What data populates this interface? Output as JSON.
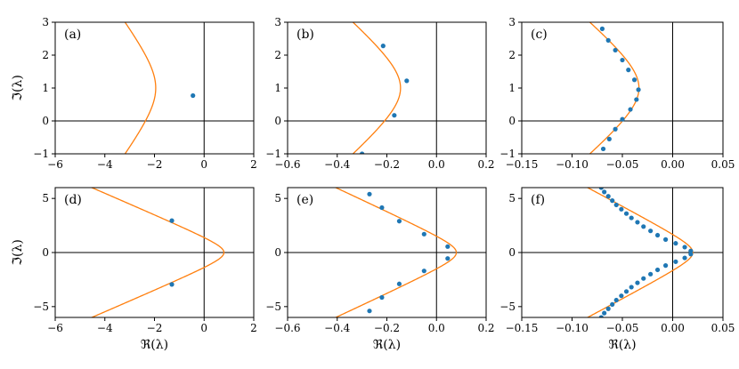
{
  "colors": {
    "curve": "#ff7f0e",
    "points": "#1f77b4",
    "axes": "#000000"
  },
  "chart_data": [
    {
      "type": "scatter",
      "panel_label": "(a)",
      "xlim": [
        -6,
        2
      ],
      "ylim": [
        -1,
        3
      ],
      "xticks": [
        "−6",
        "−4",
        "−2",
        "0",
        "2"
      ],
      "xtick_values": [
        -6,
        -4,
        -2,
        0,
        2
      ],
      "yticks": [
        "−1",
        "0",
        "1",
        "2",
        "3"
      ],
      "ytick_values": [
        -1,
        0,
        1,
        2,
        3
      ],
      "xlabel": "",
      "ylabel": "ℑ(λ)",
      "curve": {
        "a": 1,
        "b": 1,
        "c": -1.95,
        "d": -1.0,
        "center": 1.0
      },
      "points": [
        [
          -0.45,
          0.77
        ]
      ]
    },
    {
      "type": "scatter",
      "panel_label": "(b)",
      "xlim": [
        -0.6,
        0.2
      ],
      "ylim": [
        -1,
        3
      ],
      "xticks": [
        "−0.6",
        "−0.4",
        "−0.2",
        "0.0",
        "0.2"
      ],
      "xtick_values": [
        -0.6,
        -0.4,
        -0.2,
        0.0,
        0.2
      ],
      "yticks": [
        "−1",
        "0",
        "1",
        "2",
        "3"
      ],
      "ytick_values": [
        -1,
        0,
        1,
        2,
        3
      ],
      "xlabel": "",
      "ylabel": "",
      "curve": {
        "a": 1,
        "b": 1,
        "c": -0.145,
        "d": -0.155,
        "center": 1.0
      },
      "points": [
        [
          -0.215,
          2.28
        ],
        [
          -0.12,
          1.22
        ],
        [
          -0.17,
          0.17
        ],
        [
          -0.3,
          -1.0
        ]
      ]
    },
    {
      "type": "scatter",
      "panel_label": "(c)",
      "xlim": [
        -0.15,
        0.05
      ],
      "ylim": [
        -1,
        3
      ],
      "xticks": [
        "−0.15",
        "−0.10",
        "−0.05",
        "0.00",
        "0.05"
      ],
      "xtick_values": [
        -0.15,
        -0.1,
        -0.05,
        0.0,
        0.05
      ],
      "yticks": [
        "−1",
        "0",
        "1",
        "2",
        "3"
      ],
      "ytick_values": [
        -1,
        0,
        1,
        2,
        3
      ],
      "xlabel": "",
      "ylabel": "",
      "curve": {
        "a": 1,
        "b": 1,
        "c": -0.0335,
        "d": -0.0395,
        "center": 1.0
      },
      "points": [
        [
          -0.07,
          2.8
        ],
        [
          -0.064,
          2.45
        ],
        [
          -0.057,
          2.15
        ],
        [
          -0.05,
          1.85
        ],
        [
          -0.044,
          1.55
        ],
        [
          -0.038,
          1.25
        ],
        [
          -0.034,
          0.95
        ],
        [
          -0.036,
          0.65
        ],
        [
          -0.042,
          0.35
        ],
        [
          -0.05,
          0.05
        ],
        [
          -0.057,
          -0.25
        ],
        [
          -0.063,
          -0.55
        ],
        [
          -0.069,
          -0.85
        ]
      ]
    },
    {
      "type": "scatter",
      "panel_label": "(d)",
      "xlim": [
        -6,
        2
      ],
      "ylim": [
        -6,
        6
      ],
      "xticks": [
        "−6",
        "−4",
        "−2",
        "0",
        "2"
      ],
      "xtick_values": [
        -6,
        -4,
        -2,
        0,
        2
      ],
      "yticks": [
        "−5",
        "0",
        "5"
      ],
      "ytick_values": [
        -5,
        0,
        5
      ],
      "xlabel": "ℜ(λ)",
      "ylabel": "ℑ(λ)",
      "curve": {
        "a": 1,
        "b": 1.5,
        "c": 0.8,
        "d": -0.83,
        "center": 0
      },
      "points": [
        [
          -1.3,
          2.95
        ],
        [
          -1.3,
          -2.95
        ]
      ]
    },
    {
      "type": "scatter",
      "panel_label": "(e)",
      "xlim": [
        -0.6,
        0.2
      ],
      "ylim": [
        -6,
        6
      ],
      "xticks": [
        "−0.6",
        "−0.4",
        "−0.2",
        "0.0",
        "0.2"
      ],
      "xtick_values": [
        -0.6,
        -0.4,
        -0.2,
        0.0,
        0.2
      ],
      "yticks": [
        "−5",
        "0",
        "5"
      ],
      "ytick_values": [
        -5,
        0,
        5
      ],
      "xlabel": "ℜ(λ)",
      "ylabel": "",
      "curve": {
        "a": 1,
        "b": 1.2,
        "c": 0.08,
        "d": -0.086,
        "center": 0
      },
      "points": [
        [
          -0.27,
          5.4
        ],
        [
          -0.22,
          4.15
        ],
        [
          -0.15,
          2.9
        ],
        [
          -0.05,
          1.7
        ],
        [
          0.045,
          0.55
        ],
        [
          0.045,
          -0.55
        ],
        [
          -0.05,
          -1.7
        ],
        [
          -0.15,
          -2.9
        ],
        [
          -0.22,
          -4.15
        ],
        [
          -0.27,
          -5.4
        ]
      ]
    },
    {
      "type": "scatter",
      "panel_label": "(f)",
      "xlim": [
        -0.15,
        0.05
      ],
      "ylim": [
        -6,
        6
      ],
      "xticks": [
        "−0.15",
        "−0.10",
        "−0.05",
        "0.00",
        "0.05"
      ],
      "xtick_values": [
        -0.15,
        -0.1,
        -0.05,
        0.0,
        0.05
      ],
      "yticks": [
        "−5",
        "0",
        "5"
      ],
      "ytick_values": [
        -5,
        0,
        5
      ],
      "xlabel": "ℜ(λ)",
      "ylabel": "",
      "curve": {
        "a": 1,
        "b": 1.2,
        "c": 0.02,
        "d": -0.0185,
        "center": 0
      },
      "points": [
        [
          -0.071,
          6.0
        ],
        [
          -0.068,
          5.6
        ],
        [
          -0.064,
          5.2
        ],
        [
          -0.06,
          4.8
        ],
        [
          -0.056,
          4.4
        ],
        [
          -0.051,
          4.0
        ],
        [
          -0.046,
          3.6
        ],
        [
          -0.041,
          3.2
        ],
        [
          -0.035,
          2.8
        ],
        [
          -0.029,
          2.4
        ],
        [
          -0.022,
          2.0
        ],
        [
          -0.015,
          1.6
        ],
        [
          -0.007,
          1.2
        ],
        [
          0.003,
          0.85
        ],
        [
          0.012,
          0.5
        ],
        [
          0.018,
          0.15
        ],
        [
          0.018,
          -0.15
        ],
        [
          0.012,
          -0.5
        ],
        [
          0.003,
          -0.85
        ],
        [
          -0.007,
          -1.2
        ],
        [
          -0.015,
          -1.6
        ],
        [
          -0.022,
          -2.0
        ],
        [
          -0.029,
          -2.4
        ],
        [
          -0.035,
          -2.8
        ],
        [
          -0.041,
          -3.2
        ],
        [
          -0.046,
          -3.6
        ],
        [
          -0.051,
          -4.0
        ],
        [
          -0.056,
          -4.4
        ],
        [
          -0.06,
          -4.8
        ],
        [
          -0.064,
          -5.2
        ],
        [
          -0.068,
          -5.6
        ],
        [
          -0.071,
          -6.0
        ]
      ]
    }
  ]
}
